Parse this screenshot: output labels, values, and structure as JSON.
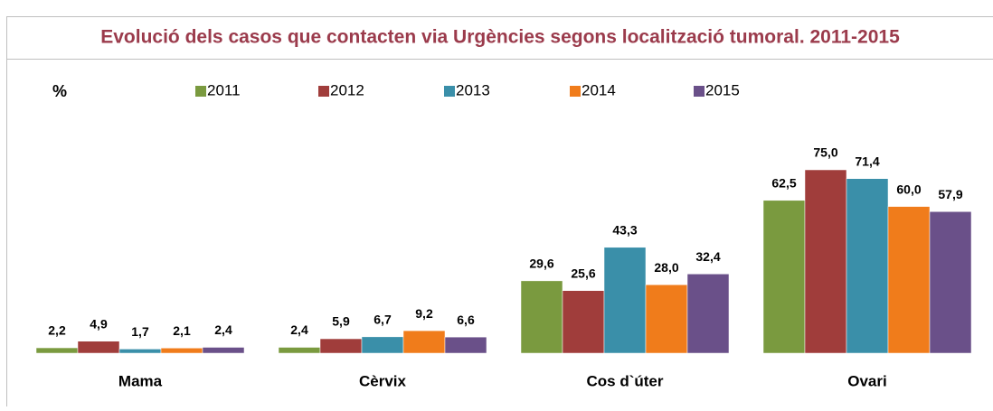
{
  "chart_data": {
    "type": "bar",
    "title": "Evolució dels casos  que contacten via Urgències segons localització tumoral. 2011-2015",
    "y_label": "%",
    "categories": [
      "Mama",
      "Cèrvix",
      "Cos d`úter",
      "Ovari"
    ],
    "ylim": [
      0,
      75
    ],
    "series": [
      {
        "name": "2011",
        "color": "#7a9a3f",
        "values": [
          2.2,
          2.4,
          29.6,
          62.5
        ],
        "value_labels": [
          "2,2",
          "2,4",
          "29,6",
          "62,5"
        ]
      },
      {
        "name": "2012",
        "color": "#a03d3b",
        "values": [
          4.9,
          5.9,
          25.6,
          75.0
        ],
        "value_labels": [
          "4,9",
          "5,9",
          "25,6",
          "75,0"
        ]
      },
      {
        "name": "2013",
        "color": "#3a8fa9",
        "values": [
          1.7,
          6.7,
          43.3,
          71.4
        ],
        "value_labels": [
          "1,7",
          "6,7",
          "43,3",
          "71,4"
        ]
      },
      {
        "name": "2014",
        "color": "#f07c1b",
        "values": [
          2.1,
          9.2,
          28.0,
          60.0
        ],
        "value_labels": [
          "2,1",
          "9,2",
          "28,0",
          "60,0"
        ]
      },
      {
        "name": "2015",
        "color": "#6a5089",
        "values": [
          2.4,
          6.6,
          32.4,
          57.9
        ],
        "value_labels": [
          "2,4",
          "6,6",
          "32,4",
          "57,9"
        ]
      }
    ]
  }
}
